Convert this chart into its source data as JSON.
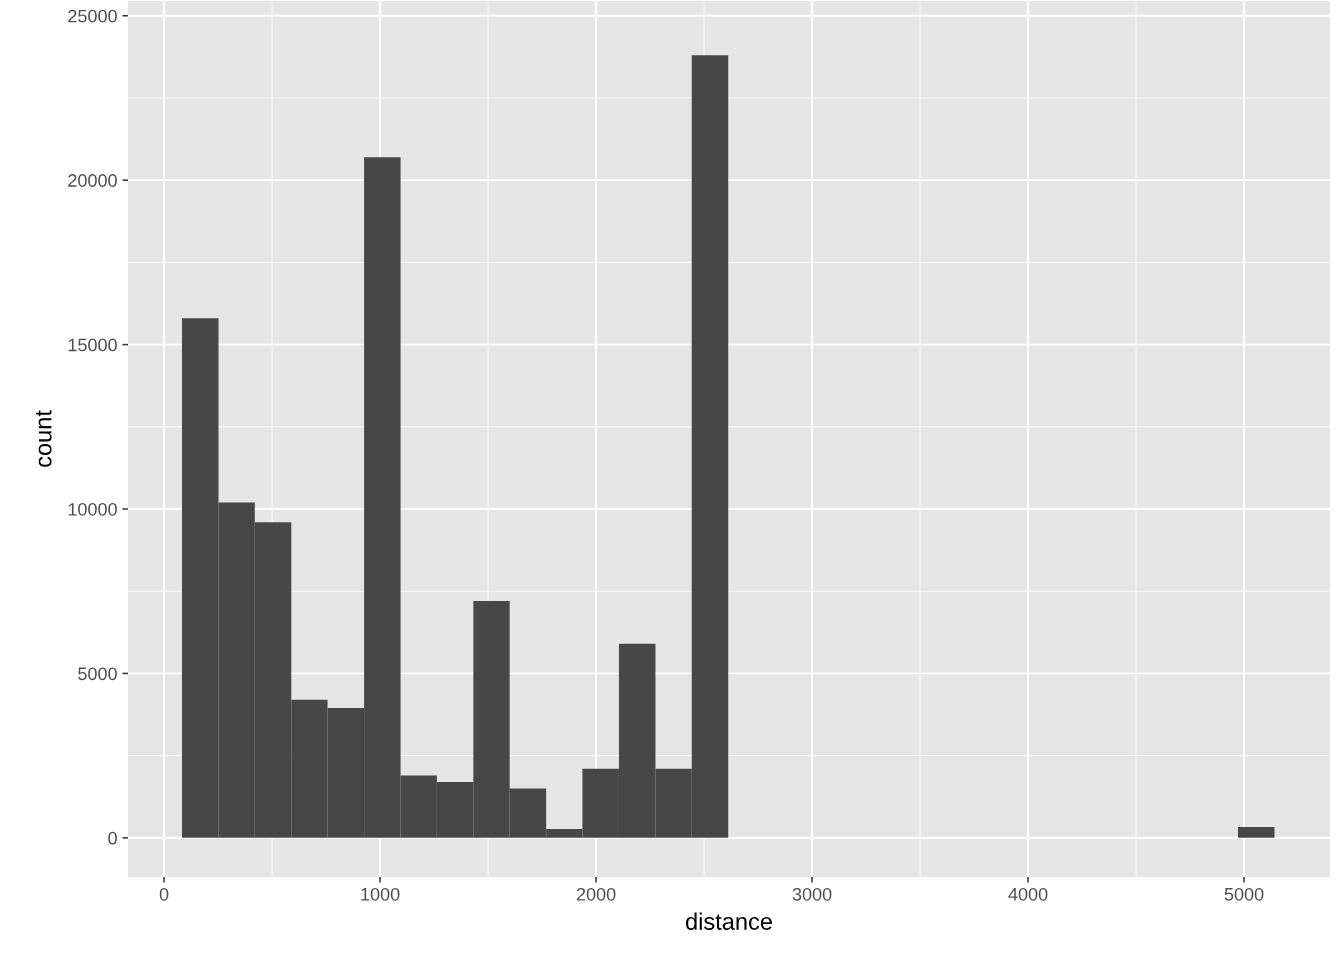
{
  "chart_data": {
    "type": "histogram",
    "xlabel": "distance",
    "ylabel": "count",
    "color": "#474747",
    "bins": [
      83,
      252,
      420,
      589,
      757,
      926,
      1095,
      1263,
      1432,
      1600,
      1769,
      1937,
      2106,
      2275,
      2443,
      2612,
      2780,
      2949,
      3118,
      3286,
      3455,
      3623,
      3792,
      3961,
      4129,
      4298,
      4466,
      4635,
      4803,
      4972,
      5141
    ],
    "values": [
      15800,
      10200,
      9600,
      4200,
      3950,
      20700,
      1900,
      1700,
      7200,
      1500,
      270,
      2100,
      5900,
      2100,
      23800,
      0,
      0,
      0,
      0,
      0,
      0,
      0,
      0,
      0,
      0,
      0,
      0,
      0,
      0,
      330
    ],
    "xlim": [
      -167,
      5398
    ],
    "ylim": [
      -1190,
      25450
    ],
    "xticks": [
      0,
      1000,
      2000,
      3000,
      4000,
      5000
    ],
    "yticks": [
      0,
      5000,
      10000,
      15000,
      20000,
      25000
    ],
    "grid": true
  }
}
